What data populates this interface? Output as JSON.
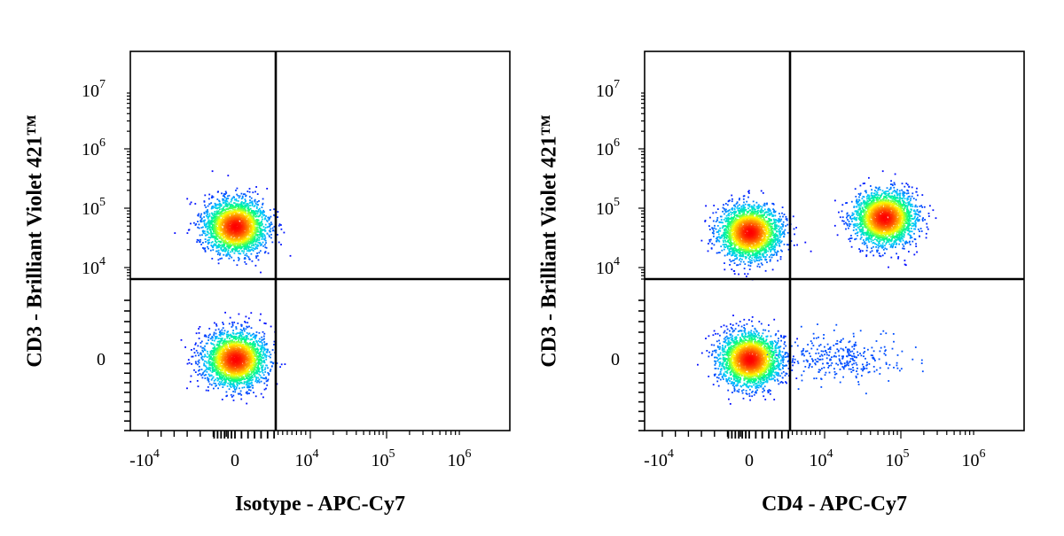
{
  "chart_data": [
    {
      "type": "scatter",
      "subtype": "flow-cytometry-density-dot-plot",
      "xlabel": "Isotype - APC-Cy7",
      "ylabel": "CD3 - Brilliant Violet 421™",
      "x_scale": "biexponential",
      "y_scale": "biexponential",
      "x_ticks": [
        "-10^4",
        "0",
        "10^4",
        "10^5",
        "10^6"
      ],
      "y_ticks": [
        "0",
        "10^4",
        "10^5",
        "10^6",
        "10^7"
      ],
      "quadrant_gate": {
        "x": 2500,
        "y": 6000
      },
      "populations": [
        {
          "x": 0,
          "y": 50000,
          "density": "high"
        },
        {
          "x": 0,
          "y": 0,
          "density": "high"
        }
      ],
      "colormap": [
        "#0000ff",
        "#00c8ff",
        "#00ff80",
        "#ffff00",
        "#ff8000",
        "#ff0000"
      ]
    },
    {
      "type": "scatter",
      "subtype": "flow-cytometry-density-dot-plot",
      "xlabel": "CD4 - APC-Cy7",
      "ylabel": "CD3 - Brilliant Violet 421™",
      "x_scale": "biexponential",
      "y_scale": "biexponential",
      "x_ticks": [
        "-10^4",
        "0",
        "10^4",
        "10^5",
        "10^6"
      ],
      "y_ticks": [
        "0",
        "10^4",
        "10^5",
        "10^6",
        "10^7"
      ],
      "quadrant_gate": {
        "x": 2500,
        "y": 6000
      },
      "populations": [
        {
          "x": 0,
          "y": 40000,
          "density": "high"
        },
        {
          "x": 60000,
          "y": 70000,
          "density": "high"
        },
        {
          "x": 0,
          "y": 0,
          "density": "high"
        },
        {
          "x": 15000,
          "y": 0,
          "density": "low"
        }
      ],
      "colormap": [
        "#0000ff",
        "#00c8ff",
        "#00ff80",
        "#ffff00",
        "#ff8000",
        "#ff0000"
      ]
    }
  ]
}
